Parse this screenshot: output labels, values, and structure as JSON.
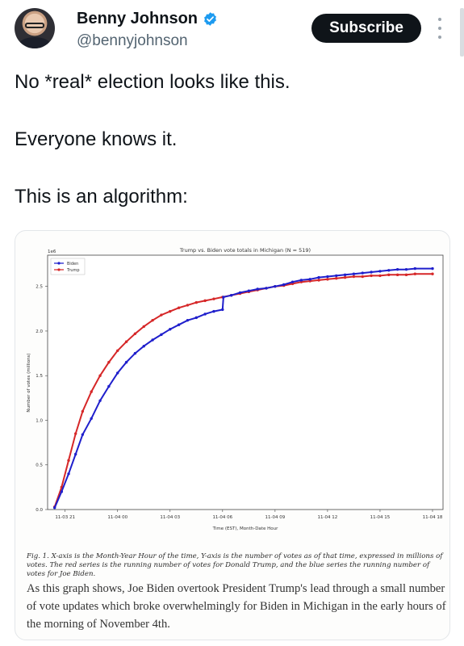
{
  "author": {
    "name": "Benny Johnson",
    "handle": "@bennyjohnson",
    "verified_color": "#1d9bf0"
  },
  "subscribe_label": "Subscribe",
  "tweet": {
    "line1": "No *real* election looks like this.",
    "line2": "Everyone knows it.",
    "line3": "This is an algorithm:"
  },
  "chart_data": {
    "type": "line",
    "title": "Trump vs. Biden vote totals in Michigan (N = 519)",
    "xlabel": "Time (EST), Month-Date Hour",
    "ylabel": "Number of votes (millions)",
    "y_multiplier_label": "1e6",
    "ylim": [
      0,
      2.85
    ],
    "y_ticks": [
      0.0,
      0.5,
      1.0,
      1.5,
      2.0,
      2.5
    ],
    "y_tick_labels": [
      "0.0",
      "0.5",
      "1.0",
      "1.5",
      "2.0",
      "2.5"
    ],
    "x_tick_labels": [
      "11-03 21",
      "11-04 00",
      "11-04 03",
      "11-04 06",
      "11-04 09",
      "11-04 12",
      "11-04 15",
      "11-04 18"
    ],
    "x_ticks_hours": [
      21,
      24,
      27,
      30,
      33,
      36,
      39,
      42
    ],
    "xlim_hours": [
      20.0,
      42.6
    ],
    "legend_position": "top-left",
    "series": [
      {
        "name": "Biden",
        "color": "#1f1fcc",
        "x": [
          20.4,
          20.8,
          21.2,
          21.6,
          22.0,
          22.5,
          23.0,
          23.5,
          24.0,
          24.5,
          25.0,
          25.5,
          26.0,
          26.5,
          27.0,
          27.5,
          28.0,
          28.5,
          29.0,
          29.5,
          30.0,
          30.05,
          30.5,
          31.0,
          31.5,
          32.0,
          32.5,
          33.0,
          33.5,
          34.0,
          34.5,
          35.0,
          35.5,
          36.0,
          36.5,
          37.0,
          37.5,
          38.0,
          38.5,
          39.0,
          39.5,
          40.0,
          40.5,
          41.0,
          42.0
        ],
        "y": [
          0.02,
          0.2,
          0.4,
          0.62,
          0.84,
          1.02,
          1.22,
          1.38,
          1.53,
          1.65,
          1.75,
          1.83,
          1.9,
          1.96,
          2.02,
          2.07,
          2.12,
          2.15,
          2.19,
          2.22,
          2.24,
          2.38,
          2.4,
          2.43,
          2.45,
          2.47,
          2.48,
          2.5,
          2.52,
          2.55,
          2.57,
          2.58,
          2.6,
          2.61,
          2.62,
          2.63,
          2.64,
          2.65,
          2.66,
          2.67,
          2.68,
          2.69,
          2.69,
          2.7,
          2.7
        ]
      },
      {
        "name": "Trump",
        "color": "#d62728",
        "x": [
          20.4,
          20.8,
          21.2,
          21.6,
          22.0,
          22.5,
          23.0,
          23.5,
          24.0,
          24.5,
          25.0,
          25.5,
          26.0,
          26.5,
          27.0,
          27.5,
          28.0,
          28.5,
          29.0,
          29.5,
          30.0,
          30.5,
          31.0,
          31.5,
          32.0,
          32.5,
          33.0,
          33.5,
          34.0,
          34.5,
          35.0,
          35.5,
          36.0,
          36.5,
          37.0,
          37.5,
          38.0,
          38.5,
          39.0,
          39.5,
          40.0,
          40.5,
          41.0,
          42.0
        ],
        "y": [
          0.03,
          0.25,
          0.55,
          0.85,
          1.1,
          1.32,
          1.5,
          1.65,
          1.78,
          1.88,
          1.97,
          2.05,
          2.12,
          2.18,
          2.22,
          2.26,
          2.29,
          2.32,
          2.34,
          2.36,
          2.38,
          2.4,
          2.42,
          2.44,
          2.46,
          2.48,
          2.5,
          2.51,
          2.53,
          2.55,
          2.56,
          2.57,
          2.58,
          2.59,
          2.6,
          2.61,
          2.61,
          2.62,
          2.62,
          2.63,
          2.63,
          2.63,
          2.64,
          2.64
        ]
      }
    ]
  },
  "caption": "Fig. 1. X-axis is the Month-Year Hour of the time, Y-axis is the number of votes as of that time, expressed in millions of votes. The red series is the running number of votes for Donald Trump, and the blue series the running number of votes for Joe Biden.",
  "article_text": "As this graph shows, Joe Biden overtook President Trump's lead through a small number of vote updates which broke overwhelmingly for Biden in Michigan in the early hours of the morning of November 4th."
}
